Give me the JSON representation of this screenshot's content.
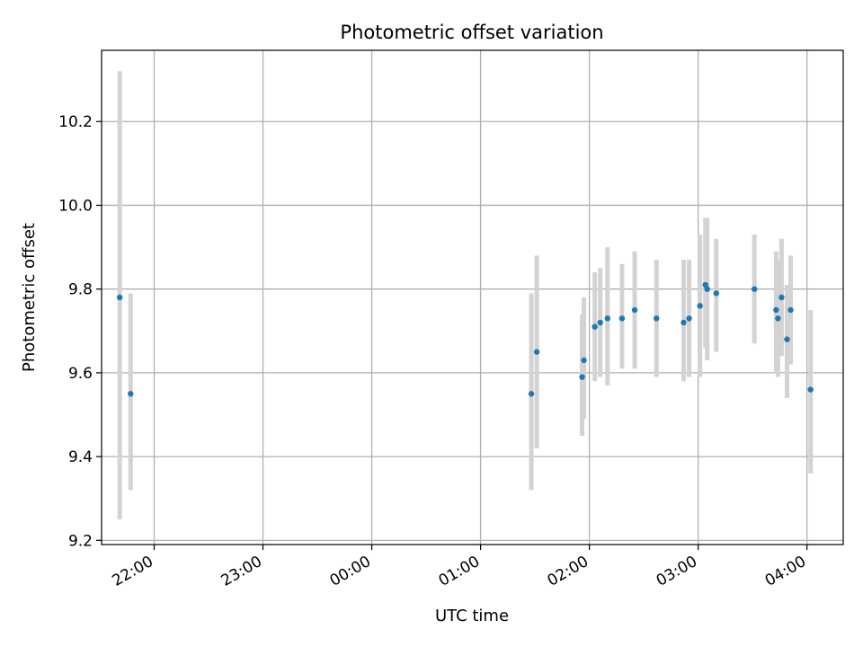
{
  "chart_data": {
    "type": "scatter",
    "title": "Photometric offset variation",
    "xlabel": "UTC time",
    "ylabel": "Photometric offset",
    "x_ticks": [
      "22:00",
      "23:00",
      "00:00",
      "01:00",
      "02:00",
      "03:00",
      "04:00"
    ],
    "y_ticks": [
      "9.2",
      "9.4",
      "9.6",
      "9.8",
      "10.0",
      "10.2"
    ],
    "xlim": [
      "21:31",
      "04:20"
    ],
    "ylim": [
      9.19,
      10.37
    ],
    "grid": true,
    "colors": {
      "point": "#1f77b4",
      "errorbar": "#d3d3d3",
      "grid": "#b0b0b0"
    },
    "points": [
      {
        "x": "21:41",
        "y": 9.78,
        "yerr_low": 9.25,
        "yerr_high": 10.32
      },
      {
        "x": "21:47",
        "y": 9.55,
        "yerr_low": 9.32,
        "yerr_high": 9.79
      },
      {
        "x": "01:28",
        "y": 9.55,
        "yerr_low": 9.32,
        "yerr_high": 9.79
      },
      {
        "x": "01:31",
        "y": 9.65,
        "yerr_low": 9.42,
        "yerr_high": 9.88
      },
      {
        "x": "01:56",
        "y": 9.59,
        "yerr_low": 9.45,
        "yerr_high": 9.74
      },
      {
        "x": "01:57",
        "y": 9.63,
        "yerr_low": 9.49,
        "yerr_high": 9.78
      },
      {
        "x": "02:03",
        "y": 9.71,
        "yerr_low": 9.58,
        "yerr_high": 9.84
      },
      {
        "x": "02:06",
        "y": 9.72,
        "yerr_low": 9.59,
        "yerr_high": 9.85
      },
      {
        "x": "02:10",
        "y": 9.73,
        "yerr_low": 9.57,
        "yerr_high": 9.9
      },
      {
        "x": "02:18",
        "y": 9.73,
        "yerr_low": 9.61,
        "yerr_high": 9.86
      },
      {
        "x": "02:25",
        "y": 9.75,
        "yerr_low": 9.61,
        "yerr_high": 9.89
      },
      {
        "x": "02:37",
        "y": 9.73,
        "yerr_low": 9.59,
        "yerr_high": 9.87
      },
      {
        "x": "02:52",
        "y": 9.72,
        "yerr_low": 9.58,
        "yerr_high": 9.87
      },
      {
        "x": "02:55",
        "y": 9.73,
        "yerr_low": 9.59,
        "yerr_high": 9.87
      },
      {
        "x": "03:01",
        "y": 9.76,
        "yerr_low": 9.59,
        "yerr_high": 9.93
      },
      {
        "x": "03:04",
        "y": 9.81,
        "yerr_low": 9.66,
        "yerr_high": 9.97
      },
      {
        "x": "03:05",
        "y": 9.8,
        "yerr_low": 9.63,
        "yerr_high": 9.97
      },
      {
        "x": "03:10",
        "y": 9.79,
        "yerr_low": 9.65,
        "yerr_high": 9.92
      },
      {
        "x": "03:31",
        "y": 9.8,
        "yerr_low": 9.67,
        "yerr_high": 9.93
      },
      {
        "x": "03:43",
        "y": 9.75,
        "yerr_low": 9.6,
        "yerr_high": 9.89
      },
      {
        "x": "03:44",
        "y": 9.73,
        "yerr_low": 9.59,
        "yerr_high": 9.87
      },
      {
        "x": "03:46",
        "y": 9.78,
        "yerr_low": 9.64,
        "yerr_high": 9.92
      },
      {
        "x": "03:49",
        "y": 9.68,
        "yerr_low": 9.54,
        "yerr_high": 9.81
      },
      {
        "x": "03:51",
        "y": 9.75,
        "yerr_low": 9.62,
        "yerr_high": 9.88
      },
      {
        "x": "04:02",
        "y": 9.56,
        "yerr_low": 9.36,
        "yerr_high": 9.75
      }
    ]
  }
}
